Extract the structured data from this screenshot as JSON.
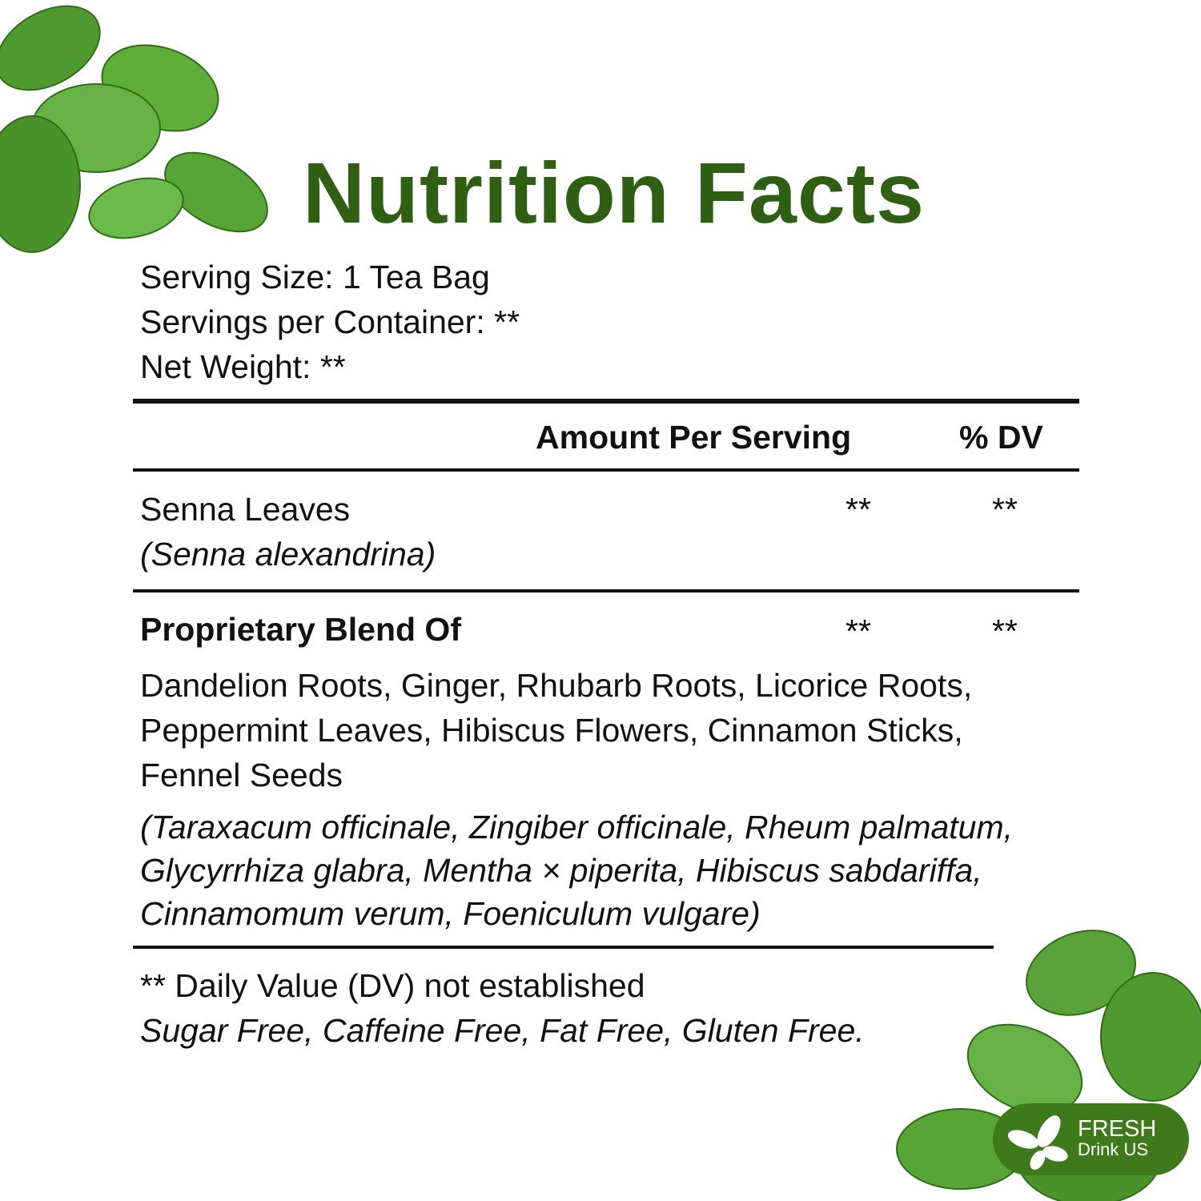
{
  "colors": {
    "accent": "#2f5f12",
    "logo": "#3f7a1a",
    "leaf": "#5aa33a"
  },
  "title": "Nutrition Facts",
  "serving_size": "Serving Size: 1 Tea Bag",
  "servings_per_container": "Servings per Container: **",
  "net_weight": "Net Weight: **",
  "table": {
    "header": {
      "amount": "Amount Per Serving",
      "dv": "% DV"
    },
    "rows": [
      {
        "name": "Senna Leaves",
        "latin": "(Senna alexandrina)",
        "amount": "**",
        "dv": "**"
      },
      {
        "name": "Proprietary Blend Of",
        "amount": "**",
        "dv": "**",
        "ingredients": [
          "Dandelion Roots, Ginger, Rhubarb Roots, Licorice Roots,",
          "Peppermint Leaves, Hibiscus Flowers, Cinnamon Sticks,",
          "Fennel Seeds"
        ],
        "latin": [
          "(Taraxacum officinale, Zingiber officinale, Rheum palmatum,",
          "Glycyrrhiza glabra, Mentha × piperita, Hibiscus sabdariffa,",
          "Cinnamomum verum, Foeniculum vulgare)"
        ]
      }
    ]
  },
  "footnote": "** Daily Value (DV) not established",
  "claims": "Sugar Free, Caffeine Free, Fat Free, Gluten Free.",
  "logo": {
    "line1": "FRESH",
    "line2": "Drink US"
  }
}
